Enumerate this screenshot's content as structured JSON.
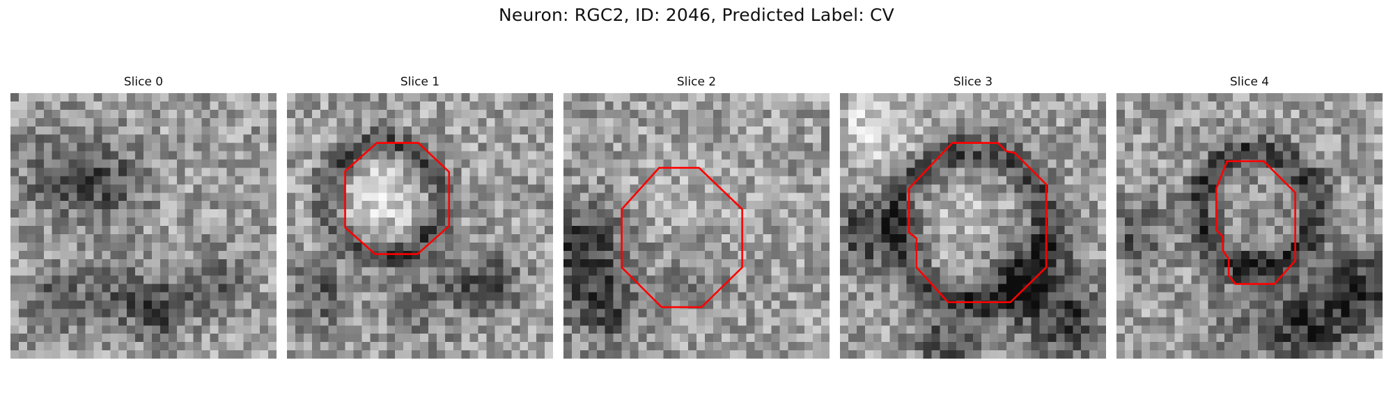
{
  "figure": {
    "title": "Neuron: RGC2, ID: 2046, Predicted Label: CV"
  },
  "panels": [
    {
      "title": "Slice 0",
      "has_contour": false,
      "seed": 11
    },
    {
      "title": "Slice 1",
      "has_contour": true,
      "seed": 23
    },
    {
      "title": "Slice 2",
      "has_contour": true,
      "seed": 37
    },
    {
      "title": "Slice 3",
      "has_contour": true,
      "seed": 41
    },
    {
      "title": "Slice 4",
      "has_contour": true,
      "seed": 59
    }
  ],
  "contour_color": "#ff0000",
  "colormap": "grayscale"
}
